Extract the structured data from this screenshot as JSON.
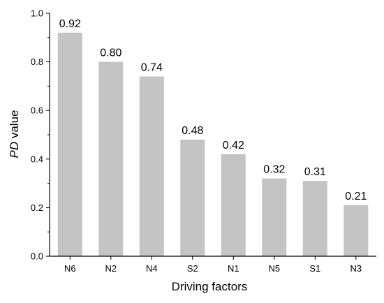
{
  "chart_data": {
    "type": "bar",
    "categories": [
      "N6",
      "N2",
      "N4",
      "S2",
      "N1",
      "N5",
      "S1",
      "N3"
    ],
    "values": [
      0.92,
      0.8,
      0.74,
      0.48,
      0.42,
      0.32,
      0.31,
      0.21
    ],
    "value_labels": [
      "0.92",
      "0.80",
      "0.74",
      "0.48",
      "0.42",
      "0.32",
      "0.31",
      "0.21"
    ],
    "xlabel": "Driving factors",
    "ylabel_italic": "PD",
    "ylabel_rest": " value",
    "ylim": [
      0.0,
      1.0
    ],
    "yticks": [
      0.0,
      0.2,
      0.4,
      0.6,
      0.8,
      1.0
    ],
    "ytick_labels": [
      "0.0",
      "0.2",
      "0.4",
      "0.6",
      "0.8",
      "1.0"
    ],
    "bar_color": "#c4c4c4",
    "axis_color": "#000000",
    "grid": false,
    "legend": "none"
  }
}
